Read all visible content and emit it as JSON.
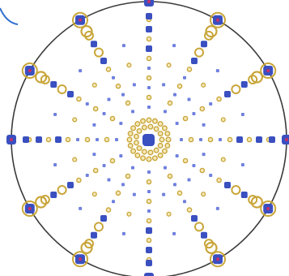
{
  "diagram": {
    "colors": {
      "background": "#ffffff",
      "boundary": "#3a3a3a",
      "blue": "#3a4fc0",
      "blue_light": "#6f80dd",
      "gold": "#c9a63a",
      "gold_fill": "#f4e9b8",
      "magenta": "#c0306a",
      "pen": "#2f6fd0"
    },
    "spoke_count": 12,
    "center_ring_dots": 20,
    "elements": [
      "boundary-circle",
      "center-core",
      "center-ring",
      "radial-spokes",
      "rim-atoms",
      "pen-mark"
    ]
  }
}
